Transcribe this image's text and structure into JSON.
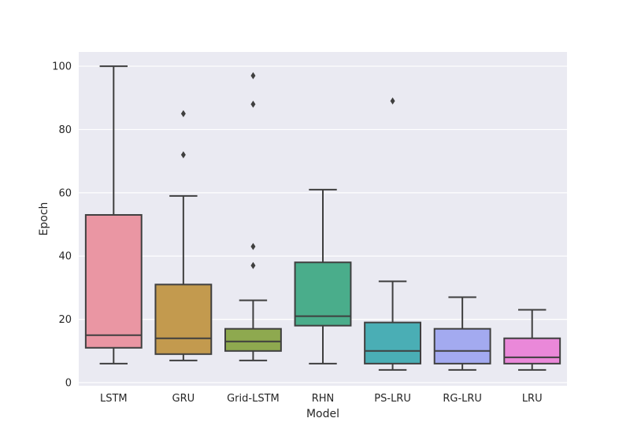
{
  "chart_data": {
    "type": "box",
    "title": "",
    "xlabel": "Model",
    "ylabel": "Epoch",
    "ylim": [
      -1,
      104.5
    ],
    "yticks": [
      0,
      20,
      40,
      60,
      80,
      100
    ],
    "grid": true,
    "legend": "none",
    "categories": [
      "LSTM",
      "GRU",
      "Grid-LSTM",
      "RHN",
      "PS-LRU",
      "RG-LRU",
      "LRU"
    ],
    "boxes": [
      {
        "category": "LSTM",
        "whisker_low": 6,
        "q1": 11,
        "median": 15,
        "q3": 53,
        "whisker_high": 100,
        "outliers": [],
        "color": "#ea96a3"
      },
      {
        "category": "GRU",
        "whisker_low": 7,
        "q1": 9,
        "median": 14,
        "q3": 31,
        "whisker_high": 59,
        "outliers": [
          72,
          85
        ],
        "color": "#c39a4e"
      },
      {
        "category": "Grid-LSTM",
        "whisker_low": 7,
        "q1": 10,
        "median": 13,
        "q3": 17,
        "whisker_high": 26,
        "outliers": [
          37,
          43,
          88,
          97
        ],
        "color": "#8ea94f"
      },
      {
        "category": "RHN",
        "whisker_low": 6,
        "q1": 18,
        "median": 21,
        "q3": 38,
        "whisker_high": 61,
        "outliers": [],
        "color": "#4aad8b"
      },
      {
        "category": "PS-LRU",
        "whisker_low": 4,
        "q1": 6,
        "median": 10,
        "q3": 19,
        "whisker_high": 32,
        "outliers": [
          89
        ],
        "color": "#4aaeb5"
      },
      {
        "category": "RG-LRU",
        "whisker_low": 4,
        "q1": 6,
        "median": 10,
        "q3": 17,
        "whisker_high": 27,
        "outliers": [],
        "color": "#a3aaf0"
      },
      {
        "category": "LRU",
        "whisker_low": 4,
        "q1": 6,
        "median": 8,
        "q3": 14,
        "whisker_high": 23,
        "outliers": [],
        "color": "#ea88d9"
      }
    ]
  }
}
